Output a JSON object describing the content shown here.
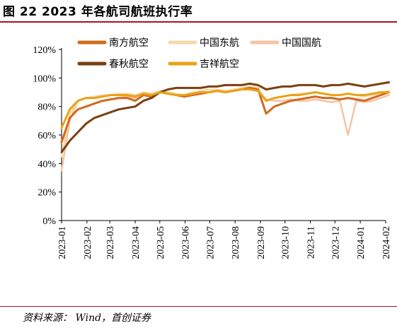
{
  "header": {
    "title": "图 22 2023 年各航司航班执行率"
  },
  "footer": {
    "source": "资料来源： Wind，首创证券"
  },
  "chart_data": {
    "type": "line",
    "title": "图 22 2023 年各航司航班执行率",
    "xlabel": "",
    "ylabel": "",
    "ylim": [
      0,
      120
    ],
    "yticks": [
      "0%",
      "20%",
      "40%",
      "60%",
      "80%",
      "100%",
      "120%"
    ],
    "xticks": [
      "2023-01",
      "2023-02",
      "2023-03",
      "2023-04",
      "2023-05",
      "2023-06",
      "2023-07",
      "2023-08",
      "2023-09",
      "2023-10",
      "2023-11",
      "2023-12",
      "2024-01",
      "2024-02"
    ],
    "grid": false,
    "legend_position": "top",
    "x": [
      "2023-01-01",
      "2023-01-11",
      "2023-01-21",
      "2023-01-31",
      "2023-02-10",
      "2023-02-20",
      "2023-03-02",
      "2023-03-12",
      "2023-03-22",
      "2023-04-01",
      "2023-04-11",
      "2023-04-21",
      "2023-05-01",
      "2023-05-11",
      "2023-05-21",
      "2023-05-31",
      "2023-06-10",
      "2023-06-20",
      "2023-06-30",
      "2023-07-10",
      "2023-07-20",
      "2023-07-30",
      "2023-08-09",
      "2023-08-19",
      "2023-08-29",
      "2023-09-08",
      "2023-09-18",
      "2023-09-28",
      "2023-10-08",
      "2023-10-18",
      "2023-10-28",
      "2023-11-07",
      "2023-11-17",
      "2023-11-27",
      "2023-12-07",
      "2023-12-17",
      "2023-12-27",
      "2024-01-06",
      "2024-01-16",
      "2024-01-26",
      "2024-02-05"
    ],
    "series": [
      {
        "name": "南方航空",
        "color": "#d2691e",
        "width": 3,
        "values": [
          55,
          72,
          78,
          80,
          82,
          84,
          85,
          86,
          86,
          84,
          88,
          87,
          90,
          89,
          88,
          87,
          88,
          89,
          90,
          91,
          90,
          91,
          92,
          93,
          92,
          75,
          80,
          82,
          84,
          85,
          86,
          87,
          86,
          86,
          85,
          86,
          85,
          84,
          86,
          88,
          90
        ]
      },
      {
        "name": "中国东航",
        "color": "#f6d9a9",
        "width": 2.5,
        "values": [
          45,
          75,
          84,
          86,
          87,
          88,
          88,
          89,
          89,
          88,
          90,
          89,
          91,
          90,
          89,
          88,
          90,
          91,
          92,
          92,
          91,
          92,
          93,
          94,
          93,
          84,
          86,
          87,
          88,
          89,
          89,
          90,
          89,
          88,
          88,
          89,
          88,
          87,
          88,
          89,
          91
        ]
      },
      {
        "name": "中国国航",
        "color": "#f4c4a4",
        "width": 2.5,
        "values": [
          35,
          70,
          84,
          86,
          86,
          87,
          88,
          88,
          87,
          86,
          89,
          88,
          90,
          89,
          88,
          87,
          88,
          89,
          90,
          91,
          90,
          91,
          92,
          93,
          92,
          85,
          84,
          84,
          85,
          84,
          84,
          85,
          84,
          83,
          84,
          60,
          84,
          83,
          84,
          86,
          88
        ]
      },
      {
        "name": "春秋航空",
        "color": "#7b3f10",
        "width": 3,
        "values": [
          48,
          56,
          62,
          68,
          72,
          74,
          76,
          78,
          79,
          80,
          84,
          86,
          90,
          92,
          93,
          93,
          93,
          93,
          94,
          94,
          95,
          95,
          95,
          96,
          95,
          92,
          93,
          94,
          94,
          95,
          95,
          95,
          94,
          95,
          95,
          96,
          95,
          94,
          95,
          96,
          97
        ]
      },
      {
        "name": "吉祥航空",
        "color": "#e8a317",
        "width": 3,
        "values": [
          65,
          78,
          84,
          86,
          86,
          87,
          88,
          88,
          88,
          87,
          89,
          88,
          90,
          89,
          88,
          88,
          89,
          90,
          90,
          91,
          90,
          91,
          92,
          92,
          91,
          84,
          86,
          87,
          88,
          88,
          89,
          90,
          89,
          88,
          88,
          89,
          88,
          88,
          89,
          90,
          90
        ]
      }
    ]
  }
}
